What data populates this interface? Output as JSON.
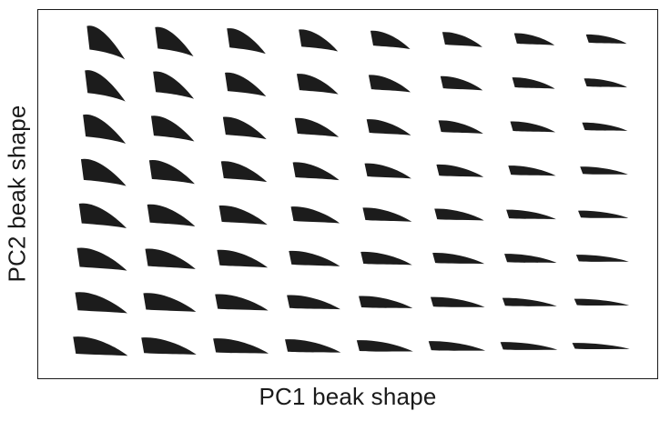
{
  "axes": {
    "x_label": "PC1 beak shape",
    "y_label": "PC2 beak shape"
  },
  "grid": {
    "columns": 8,
    "rows": 8,
    "shape_color": "#1c1c1c",
    "frame_color": "#1a1a1a",
    "background_color": "#ffffff"
  },
  "icons": {
    "shape": "beak-silhouette-icon"
  }
}
